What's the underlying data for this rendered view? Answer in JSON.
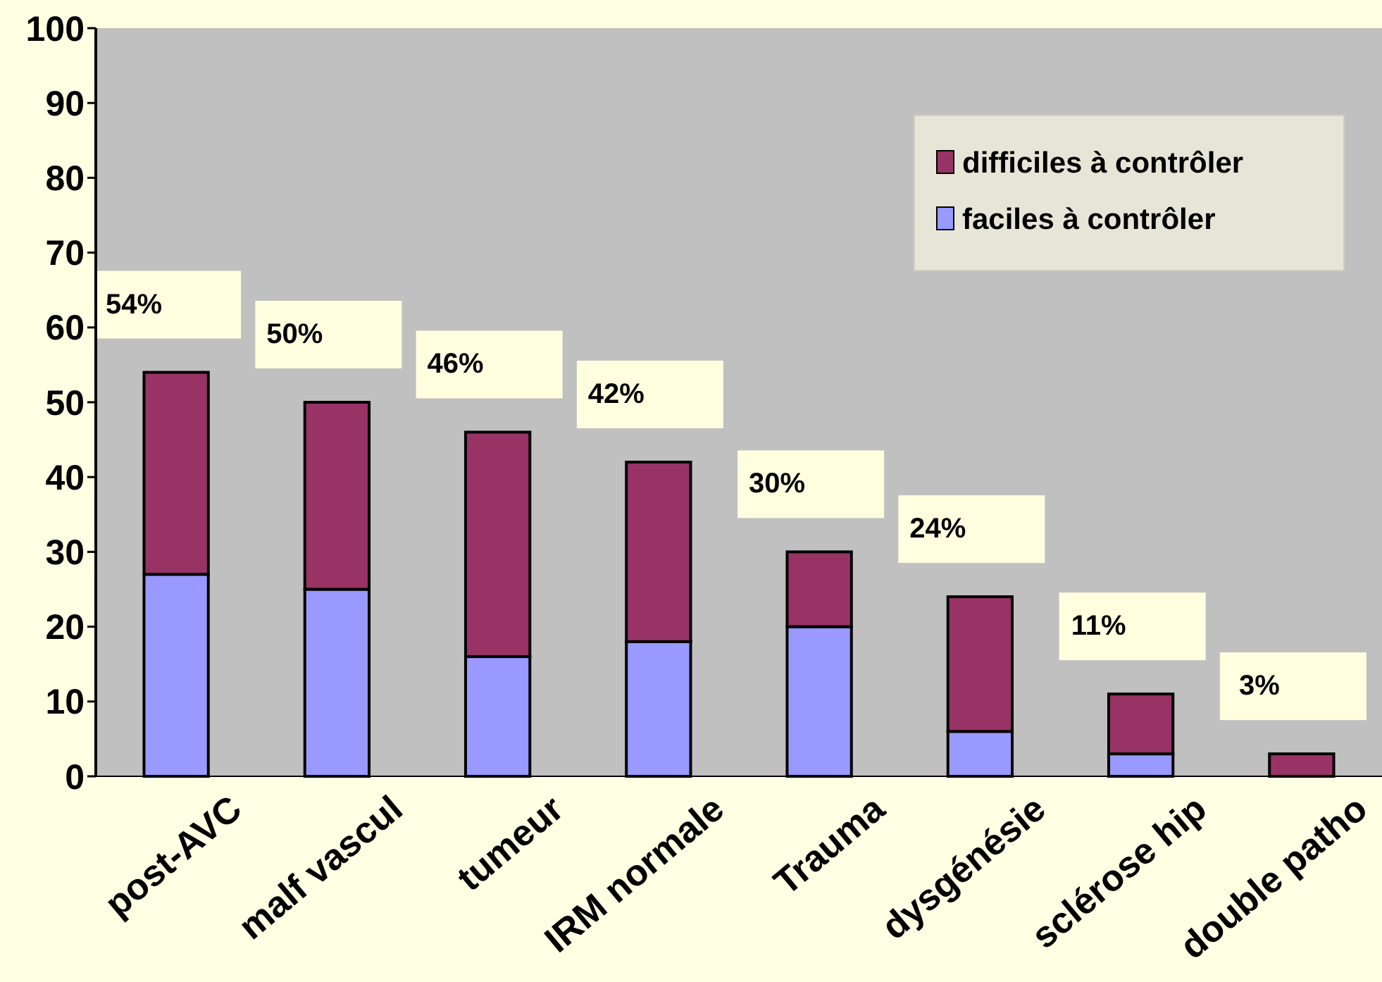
{
  "chart_data": {
    "type": "bar",
    "stacked": true,
    "categories": [
      "post-AVC",
      "malf vascul",
      "tumeur",
      "IRM normale",
      "Trauma",
      "dysgénésie",
      "sclérose hip",
      "double patho"
    ],
    "series": [
      {
        "name": "faciles à contrôler",
        "color": "#9999ff",
        "values": [
          27,
          25,
          16,
          18,
          20,
          6,
          3,
          0
        ]
      },
      {
        "name": "difficiles à contrôler",
        "color": "#993366",
        "values": [
          27,
          25,
          30,
          24,
          10,
          18,
          8,
          3
        ]
      }
    ],
    "totals": [
      "54%",
      "50%",
      "46%",
      "42%",
      "30%",
      "24%",
      "11%",
      "3%"
    ],
    "ylim": [
      0,
      100
    ],
    "yticks": [
      0,
      10,
      20,
      30,
      40,
      50,
      60,
      70,
      80,
      90,
      100
    ],
    "legend": "top right"
  }
}
